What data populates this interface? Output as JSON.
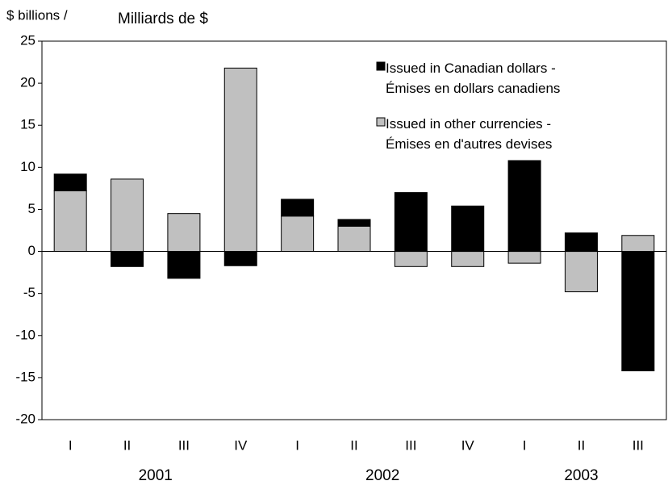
{
  "chart_data": {
    "type": "bar",
    "stacked": true,
    "y_label_left": "$ billions /",
    "y_label_right": "Milliards de $",
    "groups": [
      {
        "name": "2001",
        "quarters": [
          "I",
          "II",
          "III",
          "IV"
        ]
      },
      {
        "name": "2002",
        "quarters": [
          "I",
          "II",
          "III",
          "IV"
        ]
      },
      {
        "name": "2003",
        "quarters": [
          "I",
          "II",
          "III"
        ]
      }
    ],
    "series": [
      {
        "name": "Issued in Canadian dollars -\nÉmises en dollars canadiens",
        "color": "#000000",
        "values": [
          2.0,
          -1.8,
          -3.2,
          -1.7,
          2.0,
          0.8,
          7.0,
          5.4,
          10.8,
          2.2,
          -14.2
        ]
      },
      {
        "name": "Issued in other currencies -\nÉmises en d'autres devises",
        "color": "#c0c0c0",
        "values": [
          7.2,
          8.6,
          4.5,
          21.8,
          4.2,
          3.0,
          -1.8,
          -1.8,
          -1.4,
          -4.8,
          1.9
        ]
      }
    ],
    "ylim": [
      -20,
      25
    ],
    "yticks": [
      -20,
      -15,
      -10,
      -5,
      0,
      5,
      10,
      15,
      20,
      25
    ],
    "grid": false
  }
}
